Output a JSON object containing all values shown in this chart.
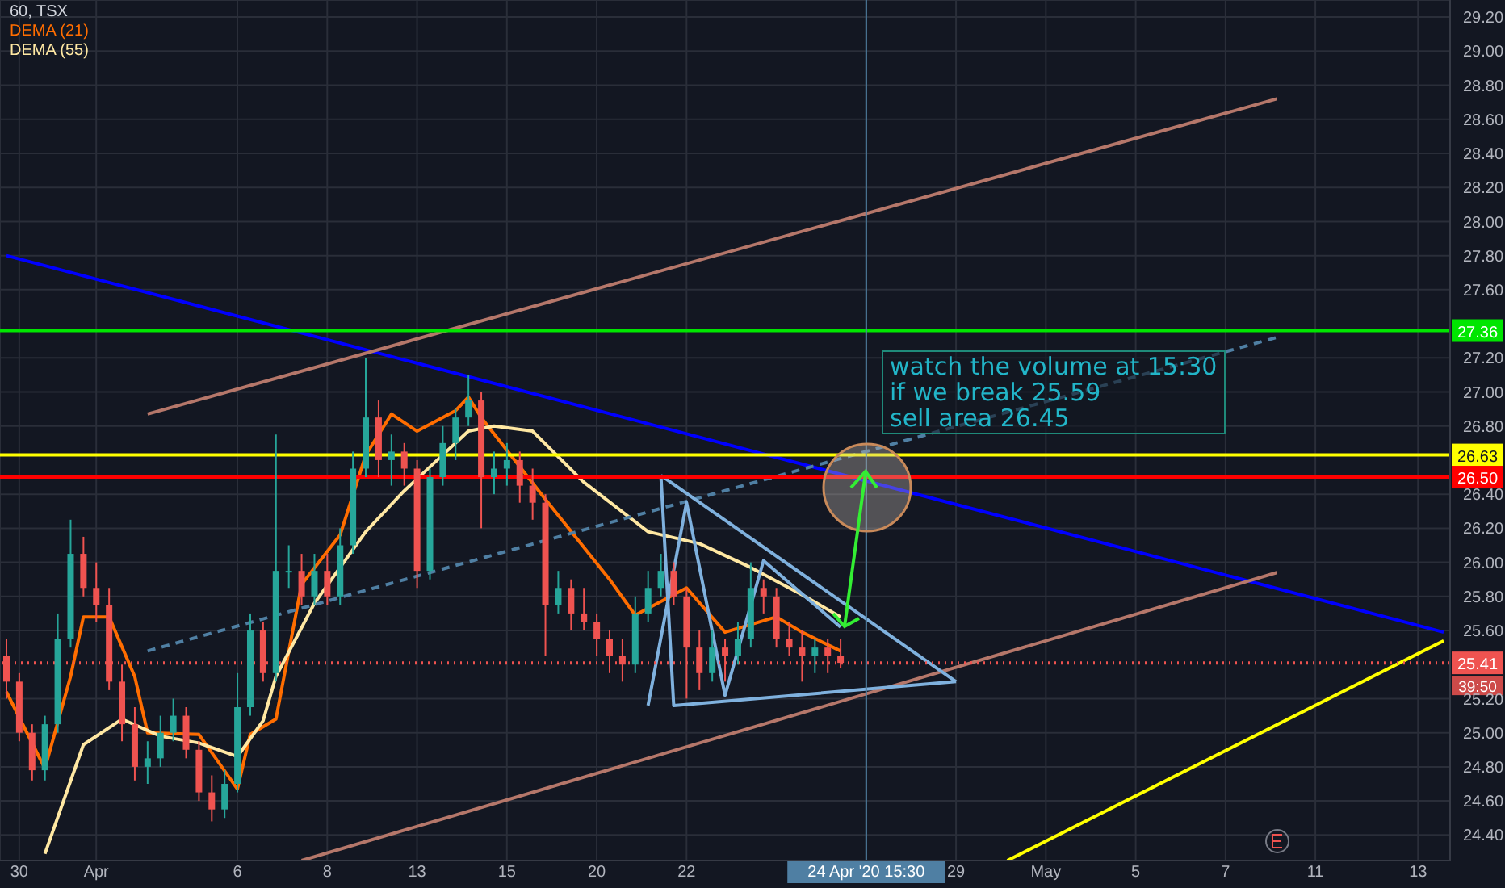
{
  "chart_data": {
    "type": "candlestick",
    "title": "60, TSX",
    "legend": "top left",
    "grid": true,
    "categories": [
      null,
      "30",
      null,
      null,
      null,
      null,
      null,
      "Apr",
      null,
      null,
      null,
      null,
      null,
      null,
      null,
      null,
      null,
      null,
      "6",
      null,
      null,
      null,
      null,
      null,
      null,
      "8",
      null,
      null,
      null,
      null,
      null,
      null,
      "13",
      null,
      null,
      null,
      null,
      null,
      null,
      "15",
      null,
      null,
      null,
      null,
      null,
      null,
      "20",
      null,
      null,
      null,
      null,
      null,
      null,
      "22",
      null,
      null,
      null,
      null,
      null,
      null,
      null,
      null,
      null,
      null,
      null,
      null,
      null,
      "24 Apr '20 15:30",
      null,
      null,
      null,
      null,
      null,
      null,
      "29",
      null,
      null,
      null,
      null,
      null,
      null,
      "May",
      null,
      null,
      null,
      null,
      null,
      null,
      "5",
      null,
      null,
      null,
      null,
      null,
      null,
      "7",
      null,
      null,
      null,
      null,
      null,
      null,
      "11",
      null,
      null,
      null,
      null,
      null,
      null,
      null,
      "13",
      null,
      null
    ],
    "ohlc": [
      [
        25.45,
        25.55,
        25.2,
        25.3
      ],
      [
        25.3,
        25.35,
        24.95,
        25.0
      ],
      [
        25.0,
        25.05,
        24.72,
        24.78
      ],
      [
        24.78,
        25.1,
        24.72,
        25.05
      ],
      [
        25.05,
        25.7,
        25.0,
        25.55
      ],
      [
        25.55,
        26.25,
        25.5,
        26.05
      ],
      [
        26.05,
        26.15,
        25.8,
        25.85
      ],
      [
        25.85,
        26.0,
        25.65,
        25.75
      ],
      [
        25.75,
        25.85,
        25.25,
        25.3
      ],
      [
        25.3,
        25.4,
        24.95,
        25.05
      ],
      [
        25.05,
        25.15,
        24.72,
        24.8
      ],
      [
        24.8,
        24.95,
        24.7,
        24.85
      ],
      [
        24.85,
        25.1,
        24.8,
        25.0
      ],
      [
        25.0,
        25.2,
        24.95,
        25.1
      ],
      [
        25.1,
        25.15,
        24.85,
        24.9
      ],
      [
        24.9,
        24.95,
        24.6,
        24.65
      ],
      [
        24.65,
        24.75,
        24.48,
        24.55
      ],
      [
        24.55,
        24.78,
        24.5,
        24.7
      ],
      [
        24.7,
        25.35,
        24.65,
        25.15
      ],
      [
        25.15,
        25.7,
        25.1,
        25.6
      ],
      [
        25.6,
        25.65,
        25.3,
        25.35
      ],
      [
        25.35,
        26.75,
        25.3,
        25.95
      ],
      [
        25.95,
        26.1,
        25.85,
        25.95
      ],
      [
        25.95,
        26.05,
        25.75,
        25.8
      ],
      [
        25.8,
        26.05,
        25.75,
        25.95
      ],
      [
        25.95,
        26.05,
        25.75,
        25.8
      ],
      [
        25.8,
        26.2,
        25.75,
        26.1
      ],
      [
        26.1,
        26.65,
        26.05,
        26.55
      ],
      [
        26.55,
        27.2,
        26.5,
        26.85
      ],
      [
        26.85,
        26.95,
        26.5,
        26.6
      ],
      [
        26.6,
        26.75,
        26.45,
        26.65
      ],
      [
        26.65,
        26.7,
        26.45,
        26.55
      ],
      [
        26.55,
        26.6,
        25.85,
        25.95
      ],
      [
        25.95,
        26.55,
        25.9,
        26.5
      ],
      [
        26.5,
        26.8,
        26.45,
        26.7
      ],
      [
        26.7,
        26.9,
        26.6,
        26.85
      ],
      [
        26.85,
        27.1,
        26.8,
        26.95
      ],
      [
        26.95,
        27.0,
        26.2,
        26.5
      ],
      [
        26.5,
        26.65,
        26.4,
        26.55
      ],
      [
        26.55,
        26.7,
        26.45,
        26.6
      ],
      [
        26.6,
        26.65,
        26.35,
        26.45
      ],
      [
        26.45,
        26.55,
        26.25,
        26.35
      ],
      [
        26.35,
        26.4,
        25.45,
        25.75
      ],
      [
        25.75,
        25.95,
        25.7,
        25.85
      ],
      [
        25.85,
        25.9,
        25.6,
        25.7
      ],
      [
        25.7,
        25.85,
        25.6,
        25.65
      ],
      [
        25.65,
        25.7,
        25.45,
        25.55
      ],
      [
        25.55,
        25.6,
        25.35,
        25.45
      ],
      [
        25.45,
        25.55,
        25.3,
        25.4
      ],
      [
        25.4,
        25.8,
        25.35,
        25.7
      ],
      [
        25.7,
        25.95,
        25.65,
        25.85
      ],
      [
        25.85,
        26.05,
        25.8,
        25.95
      ],
      [
        25.95,
        26.0,
        25.75,
        25.8
      ],
      [
        25.8,
        25.85,
        25.2,
        25.5
      ],
      [
        25.5,
        25.6,
        25.25,
        25.35
      ],
      [
        25.35,
        25.6,
        25.3,
        25.5
      ],
      [
        25.5,
        25.55,
        25.3,
        25.45
      ],
      [
        25.45,
        25.65,
        25.4,
        25.55
      ],
      [
        25.55,
        26.0,
        25.5,
        25.85
      ],
      [
        25.85,
        25.9,
        25.7,
        25.8
      ],
      [
        25.8,
        25.85,
        25.5,
        25.55
      ],
      [
        25.55,
        25.65,
        25.45,
        25.5
      ],
      [
        25.5,
        25.6,
        25.3,
        25.45
      ],
      [
        25.45,
        25.55,
        25.35,
        25.5
      ],
      [
        25.5,
        25.55,
        25.35,
        25.45
      ],
      [
        25.45,
        25.55,
        25.38,
        25.41
      ],
      null,
      null,
      null,
      null,
      null,
      null,
      null,
      null,
      null,
      null,
      null,
      null,
      null,
      null,
      null,
      null,
      null,
      null,
      null,
      null,
      null,
      null,
      null,
      null,
      null,
      null,
      null,
      null,
      null,
      null,
      null,
      null,
      null,
      null,
      null,
      null,
      null,
      null,
      null,
      null,
      null,
      null,
      null,
      null,
      null,
      null,
      null
    ],
    "colors": [
      "#ef5350",
      "#ef5350",
      "#ef5350",
      "#26a69a",
      "#26a69a",
      "#26a69a",
      "#ef5350",
      "#ef5350",
      "#ef5350",
      "#ef5350",
      "#ef5350",
      "#26a69a",
      "#26a69a",
      "#26a69a",
      "#ef5350",
      "#ef5350",
      "#ef5350",
      "#26a69a",
      "#26a69a",
      "#26a69a",
      "#ef5350",
      "#26a69a",
      "#26a69a",
      "#ef5350",
      "#26a69a",
      "#ef5350",
      "#26a69a",
      "#26a69a",
      "#26a69a",
      "#ef5350",
      "#26a69a",
      "#ef5350",
      "#ef5350",
      "#26a69a",
      "#26a69a",
      "#26a69a",
      "#26a69a",
      "#ef5350",
      "#26a69a",
      "#26a69a",
      "#ef5350",
      "#ef5350",
      "#ef5350",
      "#26a69a",
      "#ef5350",
      "#ef5350",
      "#ef5350",
      "#ef5350",
      "#ef5350",
      "#26a69a",
      "#26a69a",
      "#26a69a",
      "#ef5350",
      "#ef5350",
      "#ef5350",
      "#26a69a",
      "#ef5350",
      "#26a69a",
      "#26a69a",
      "#ef5350",
      "#ef5350",
      "#ef5350",
      "#ef5350",
      "#26a69a",
      "#ef5350",
      "#ef5350",
      null,
      null,
      null,
      null,
      null,
      null,
      null,
      null,
      null,
      null,
      null,
      null,
      null,
      null,
      null,
      null,
      null,
      null,
      null,
      null,
      null,
      null,
      null,
      null,
      null,
      null,
      null,
      null,
      null,
      null,
      null,
      null,
      null,
      null,
      null,
      null,
      null,
      null,
      null,
      null,
      null,
      null,
      null,
      null,
      null,
      null,
      null
    ],
    "series": [
      {
        "type": "line",
        "name": "DEMA (21)",
        "color": "#ff6d00",
        "values": [
          25.24,
          null,
          null,
          24.79,
          null,
          25.33,
          25.68,
          null,
          25.68,
          null,
          25.33,
          25.0,
          null,
          null,
          null,
          24.99,
          null,
          null,
          24.67,
          24.99,
          null,
          25.08,
          null,
          25.87,
          null,
          null,
          26.16,
          null,
          26.63,
          null,
          26.87,
          null,
          26.77,
          null,
          null,
          26.89,
          26.97,
          26.85,
          null,
          null,
          null,
          null,
          26.37,
          null,
          null,
          null,
          null,
          25.9,
          null,
          25.69,
          null,
          null,
          null,
          25.85,
          null,
          null,
          25.59,
          null,
          null,
          null,
          25.68,
          null,
          25.59,
          null,
          null,
          25.48,
          null,
          null,
          null,
          null,
          null,
          null,
          null,
          null,
          null,
          null,
          null,
          null,
          null,
          null,
          null,
          null,
          null,
          null,
          null,
          null,
          null,
          null,
          null,
          null,
          null,
          null,
          null,
          null,
          null,
          null,
          null,
          null,
          null,
          null,
          null,
          null,
          null,
          null,
          null,
          null,
          null,
          null,
          null,
          null,
          null,
          null,
          null
        ]
      },
      {
        "type": "line",
        "name": "DEMA (55)",
        "color": "#ffe8a3",
        "values": [
          null,
          null,
          null,
          24.29,
          null,
          null,
          24.93,
          null,
          null,
          25.08,
          null,
          null,
          24.98,
          null,
          null,
          24.94,
          null,
          null,
          24.86,
          null,
          25.07,
          25.33,
          null,
          null,
          25.76,
          null,
          null,
          null,
          26.18,
          null,
          null,
          26.42,
          null,
          26.56,
          null,
          null,
          26.77,
          null,
          26.8,
          null,
          null,
          26.77,
          null,
          null,
          null,
          26.47,
          null,
          null,
          null,
          null,
          26.18,
          null,
          null,
          null,
          26.11,
          null,
          null,
          null,
          25.97,
          null,
          null,
          null,
          25.81,
          null,
          null,
          25.68,
          null,
          null,
          null,
          null,
          null,
          null,
          null,
          null,
          null,
          null,
          null,
          null,
          null,
          null,
          null,
          null,
          null,
          null,
          null,
          null,
          null,
          null,
          null,
          null,
          null,
          null,
          null,
          null,
          null,
          null,
          null,
          null,
          null,
          null,
          null,
          null,
          null,
          null,
          null,
          null,
          null,
          null,
          null,
          null,
          null,
          null,
          null
        ]
      },
      {
        "type": "line",
        "color": "#0000ff",
        "values": [
          27.8,
          null,
          null,
          null,
          null,
          null,
          null,
          null,
          null,
          null,
          null,
          null,
          null,
          null,
          null,
          null,
          null,
          null,
          null,
          null,
          null,
          null,
          null,
          null,
          null,
          null,
          null,
          null,
          null,
          null,
          null,
          null,
          null,
          null,
          null,
          null,
          null,
          null,
          null,
          null,
          null,
          null,
          null,
          null,
          null,
          null,
          null,
          null,
          null,
          null,
          null,
          null,
          null,
          null,
          null,
          null,
          null,
          null,
          null,
          null,
          null,
          null,
          null,
          null,
          null,
          null,
          null,
          null,
          null,
          null,
          null,
          null,
          null,
          null,
          null,
          null,
          null,
          null,
          null,
          null,
          null,
          null,
          null,
          null,
          null,
          null,
          null,
          null,
          null,
          null,
          null,
          null,
          null,
          null,
          null,
          null,
          null,
          null,
          null,
          null,
          null,
          null,
          null,
          null,
          null,
          null,
          null,
          null,
          null,
          null,
          null,
          null,
          25.59
        ]
      },
      {
        "type": "line",
        "color": "#b5776a",
        "values": [
          null,
          null,
          null,
          null,
          null,
          null,
          null,
          null,
          null,
          null,
          null,
          26.87,
          null,
          null,
          null,
          null,
          null,
          null,
          null,
          null,
          null,
          null,
          null,
          null,
          null,
          null,
          null,
          null,
          null,
          null,
          null,
          null,
          null,
          null,
          null,
          null,
          null,
          null,
          null,
          null,
          null,
          null,
          null,
          null,
          null,
          null,
          null,
          null,
          null,
          null,
          null,
          null,
          null,
          null,
          null,
          null,
          null,
          null,
          null,
          null,
          null,
          null,
          null,
          null,
          null,
          null,
          null,
          null,
          null,
          null,
          null,
          null,
          null,
          null,
          null,
          null,
          null,
          null,
          null,
          null,
          null,
          null,
          null,
          null,
          null,
          null,
          null,
          null,
          null,
          null,
          null,
          null,
          null,
          null,
          null,
          null,
          null,
          null,
          null,
          28.72,
          null,
          null,
          null,
          null,
          null,
          null,
          null,
          null,
          null,
          null,
          null,
          null,
          null
        ]
      },
      {
        "type": "line",
        "color": "#b5776a",
        "values": [
          null,
          null,
          null,
          null,
          null,
          null,
          null,
          null,
          null,
          null,
          null,
          null,
          null,
          null,
          null,
          null,
          null,
          null,
          null,
          null,
          null,
          null,
          null,
          24.25,
          null,
          null,
          null,
          null,
          null,
          null,
          null,
          null,
          null,
          null,
          null,
          null,
          null,
          null,
          null,
          null,
          null,
          null,
          null,
          null,
          null,
          null,
          null,
          null,
          null,
          null,
          null,
          null,
          null,
          null,
          null,
          null,
          null,
          null,
          null,
          null,
          null,
          null,
          null,
          null,
          null,
          null,
          null,
          null,
          null,
          null,
          null,
          null,
          null,
          null,
          null,
          null,
          null,
          null,
          null,
          null,
          null,
          null,
          null,
          null,
          null,
          null,
          null,
          null,
          null,
          null,
          null,
          null,
          null,
          null,
          null,
          null,
          null,
          null,
          null,
          25.94,
          null,
          null,
          null,
          null,
          null,
          null,
          null,
          null,
          null,
          null,
          null,
          null,
          null
        ]
      },
      {
        "type": "line",
        "color": "#4f7fa3",
        "line_style": "dashed",
        "values": [
          null,
          null,
          null,
          null,
          null,
          null,
          null,
          null,
          null,
          null,
          null,
          25.48,
          null,
          null,
          null,
          null,
          null,
          null,
          null,
          null,
          null,
          null,
          null,
          null,
          null,
          null,
          null,
          null,
          null,
          null,
          null,
          null,
          null,
          null,
          null,
          null,
          null,
          null,
          null,
          null,
          null,
          null,
          null,
          null,
          null,
          null,
          null,
          null,
          null,
          null,
          null,
          null,
          null,
          null,
          null,
          null,
          null,
          null,
          null,
          null,
          null,
          null,
          null,
          null,
          null,
          null,
          null,
          null,
          null,
          null,
          null,
          null,
          null,
          null,
          null,
          null,
          null,
          null,
          null,
          null,
          null,
          null,
          null,
          null,
          null,
          null,
          null,
          null,
          null,
          null,
          null,
          null,
          null,
          null,
          null,
          null,
          null,
          null,
          null,
          27.32,
          null,
          null,
          null,
          null,
          null,
          null,
          null,
          null,
          null,
          null,
          null,
          null,
          null
        ]
      },
      {
        "type": "line",
        "color": "#ffff00",
        "values": [
          null,
          null,
          null,
          null,
          null,
          null,
          null,
          null,
          null,
          null,
          null,
          null,
          null,
          null,
          null,
          null,
          null,
          null,
          null,
          null,
          null,
          null,
          null,
          null,
          null,
          null,
          null,
          null,
          null,
          null,
          null,
          null,
          null,
          null,
          null,
          null,
          null,
          null,
          null,
          null,
          null,
          null,
          null,
          null,
          null,
          null,
          null,
          null,
          null,
          null,
          null,
          null,
          null,
          null,
          null,
          null,
          null,
          null,
          null,
          null,
          null,
          null,
          null,
          null,
          null,
          null,
          null,
          null,
          null,
          null,
          null,
          null,
          null,
          null,
          null,
          null,
          null,
          null,
          24.25,
          null,
          null,
          null,
          null,
          null,
          null,
          null,
          null,
          null,
          null,
          null,
          null,
          null,
          null,
          null,
          null,
          null,
          null,
          null,
          null,
          null,
          null,
          null,
          null,
          null,
          null,
          null,
          null,
          null,
          null,
          null,
          null,
          null,
          25.54
        ]
      },
      {
        "type": "line",
        "color": "#7fb1de",
        "values": [
          null,
          null,
          null,
          null,
          null,
          null,
          null,
          null,
          null,
          null,
          null,
          null,
          null,
          null,
          null,
          null,
          null,
          null,
          null,
          null,
          null,
          null,
          null,
          null,
          null,
          null,
          null,
          null,
          null,
          null,
          null,
          null,
          null,
          null,
          null,
          null,
          null,
          null,
          null,
          null,
          null,
          null,
          null,
          null,
          null,
          null,
          null,
          null,
          null,
          null,
          null,
          26.51,
          25.16,
          null,
          null,
          null,
          null,
          null,
          null,
          null,
          null,
          null,
          null,
          null,
          null,
          null,
          null,
          null,
          null,
          null,
          null,
          null,
          null,
          null,
          25.3,
          null,
          null,
          null,
          null,
          null,
          null,
          null,
          null,
          null,
          null,
          null,
          null,
          null,
          null,
          null,
          null,
          null,
          null,
          null,
          null,
          null,
          null,
          null,
          null,
          null,
          null,
          null,
          null,
          null,
          null,
          null,
          null,
          null,
          null,
          null,
          null,
          null,
          null
        ]
      },
      {
        "type": "line",
        "color": "#7fb1de",
        "values": [
          null,
          null,
          null,
          null,
          null,
          null,
          null,
          null,
          null,
          null,
          null,
          null,
          null,
          null,
          null,
          null,
          null,
          null,
          null,
          null,
          null,
          null,
          null,
          null,
          null,
          null,
          null,
          null,
          null,
          null,
          null,
          null,
          null,
          null,
          null,
          null,
          null,
          null,
          null,
          null,
          null,
          null,
          null,
          null,
          null,
          null,
          null,
          null,
          null,
          null,
          null,
          26.51,
          null,
          null,
          null,
          null,
          null,
          null,
          null,
          null,
          null,
          null,
          null,
          null,
          null,
          null,
          null,
          null,
          null,
          null,
          null,
          null,
          null,
          null,
          25.3,
          null,
          null,
          null,
          null,
          null,
          null,
          null,
          null,
          null,
          null,
          null,
          null,
          null,
          null,
          null,
          null,
          null,
          null,
          null,
          null,
          null,
          null,
          null,
          null,
          null,
          null,
          null,
          null,
          null,
          null,
          null,
          null,
          null,
          null,
          null,
          null,
          null,
          null
        ]
      },
      {
        "type": "line",
        "color": "#7fb1de",
        "values": [
          null,
          null,
          null,
          null,
          null,
          null,
          null,
          null,
          null,
          null,
          null,
          null,
          null,
          null,
          null,
          null,
          null,
          null,
          null,
          null,
          null,
          null,
          null,
          null,
          null,
          null,
          null,
          null,
          null,
          null,
          null,
          null,
          null,
          null,
          null,
          null,
          null,
          null,
          null,
          null,
          null,
          null,
          null,
          null,
          null,
          null,
          null,
          null,
          null,
          null,
          25.16,
          null,
          null,
          26.35,
          null,
          null,
          25.22,
          null,
          null,
          26.01,
          null,
          null,
          null,
          null,
          null,
          25.62,
          null,
          null,
          null,
          null,
          null,
          null,
          null,
          null,
          null,
          null,
          null,
          null,
          null,
          null,
          null,
          null,
          null,
          null,
          null,
          null,
          null,
          null,
          null,
          null,
          null,
          null,
          null,
          null,
          null,
          null,
          null,
          null,
          null,
          null,
          null,
          null,
          null,
          null,
          null,
          null,
          null,
          null,
          null,
          null,
          null,
          null,
          null
        ]
      }
    ],
    "ylim": [
      24.25,
      29.3
    ],
    "yticks": [
      {
        "value": 24.4,
        "label": "24.40"
      },
      {
        "value": 24.6,
        "label": "24.60"
      },
      {
        "value": 24.8,
        "label": "24.80"
      },
      {
        "value": 25,
        "label": "25.00"
      },
      {
        "value": 25.2,
        "label": "25.20"
      },
      {
        "value": 25.6,
        "label": "25.60"
      },
      {
        "value": 25.8,
        "label": "25.80"
      },
      {
        "value": 26,
        "label": "26.00"
      },
      {
        "value": 26.2,
        "label": "26.20"
      },
      {
        "value": 26.4,
        "label": "26.40"
      },
      {
        "value": 26.8,
        "label": "26.80"
      },
      {
        "value": 27,
        "label": "27.00"
      },
      {
        "value": 27.2,
        "label": "27.20"
      },
      {
        "value": 27.6,
        "label": "27.60"
      },
      {
        "value": 27.8,
        "label": "27.80"
      },
      {
        "value": 28,
        "label": "28.00"
      },
      {
        "value": 28.2,
        "label": "28.20"
      },
      {
        "value": 28.4,
        "label": "28.40"
      },
      {
        "value": 28.6,
        "label": "28.60"
      },
      {
        "value": 28.8,
        "label": "28.80"
      },
      {
        "value": 29,
        "label": "29.00"
      },
      {
        "value": 29.2,
        "label": "29.20"
      }
    ],
    "ref_lines": [
      {
        "axis": "y",
        "value": 27.36,
        "label": "27.36",
        "color": "#00e600"
      },
      {
        "axis": "y",
        "value": 26.63,
        "label": "26.63",
        "color": "#ffff00"
      },
      {
        "axis": "y",
        "value": 26.5,
        "label": "26.50",
        "color": "#ff0000"
      },
      {
        "axis": "y",
        "value": 25.41,
        "label": "25.41",
        "color": "#ef5350",
        "line_style": "dotted"
      },
      {
        "axis": "x",
        "value": "24 Apr '20 15:30",
        "color": "#4f7fa3"
      }
    ],
    "annotations": [
      "watch the volume at 15:30",
      "if we break 25.59",
      "sell area 26.45",
      {
        "text": "39:50",
        "y": 25.41
      }
    ]
  }
}
